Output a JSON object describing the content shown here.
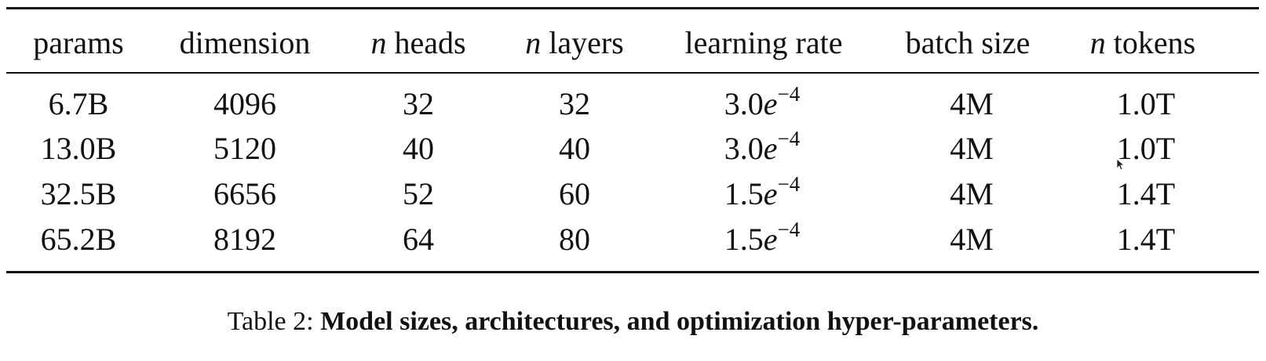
{
  "table": {
    "headers": {
      "params": "params",
      "dimension": "dimension",
      "heads_var": "n",
      "heads_text": "heads",
      "layers_var": "n",
      "layers_text": "layers",
      "learning_rate": "learning rate",
      "batch_size": "batch size",
      "tokens_var": "n",
      "tokens_text": "tokens"
    },
    "rows": [
      {
        "params": "6.7B",
        "dimension": "4096",
        "heads": "32",
        "layers": "32",
        "lr_mantissa": "3.0",
        "lr_base": "e",
        "lr_exp": "−4",
        "batch_size": "4M",
        "tokens": "1.0T"
      },
      {
        "params": "13.0B",
        "dimension": "5120",
        "heads": "40",
        "layers": "40",
        "lr_mantissa": "3.0",
        "lr_base": "e",
        "lr_exp": "−4",
        "batch_size": "4M",
        "tokens": "1.0T"
      },
      {
        "params": "32.5B",
        "dimension": "6656",
        "heads": "52",
        "layers": "60",
        "lr_mantissa": "1.5",
        "lr_base": "e",
        "lr_exp": "−4",
        "batch_size": "4M",
        "tokens": "1.4T"
      },
      {
        "params": "65.2B",
        "dimension": "8192",
        "heads": "64",
        "layers": "80",
        "lr_mantissa": "1.5",
        "lr_base": "e",
        "lr_exp": "−4",
        "batch_size": "4M",
        "tokens": "1.4T"
      }
    ]
  },
  "caption": {
    "label": "Table 2:",
    "text": "Model sizes, architectures, and optimization hyper-parameters."
  },
  "colors": {
    "text": "#111111",
    "background": "#ffffff"
  }
}
